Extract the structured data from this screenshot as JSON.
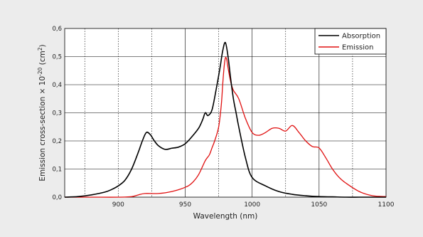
{
  "chart_data": {
    "type": "line",
    "title": "",
    "xlabel": "Wavelength (nm)",
    "ylabel": "Emission cross-section × 10",
    "ylabel_sup1": "-20",
    "ylabel_unit": " (cm",
    "ylabel_sup2": "2",
    "ylabel_end": ")",
    "xlim": [
      860,
      1100
    ],
    "ylim": [
      0,
      0.6
    ],
    "x_ticks": [
      900,
      950,
      1000,
      1050,
      1100
    ],
    "x_tick_labels": [
      "900",
      "950",
      "1000",
      "1050",
      "1100"
    ],
    "y_ticks": [
      0,
      0.1,
      0.2,
      0.3,
      0.4,
      0.5,
      0.6
    ],
    "y_tick_labels": [
      "0,0",
      "0,1",
      "0,2",
      "0,3",
      "0,4",
      "0,5",
      "0,6"
    ],
    "dotted_gridlines_x": [
      875,
      900,
      925,
      975,
      1025,
      1075
    ],
    "solid_gridlines_x": [
      950,
      1000,
      1050
    ],
    "grid": true,
    "legend_position": "top-right",
    "series": [
      {
        "name": "Absorption",
        "color": "#000000",
        "x": [
          860,
          870,
          880,
          890,
          895,
          900,
          905,
          910,
          915,
          918,
          921,
          924,
          927,
          930,
          935,
          940,
          945,
          950,
          955,
          960,
          963,
          965,
          967,
          970,
          973,
          976,
          978,
          980,
          982,
          984,
          986,
          988,
          990,
          995,
          1000,
          1010,
          1020,
          1030,
          1040,
          1050,
          1060,
          1070,
          1080,
          1090,
          1100
        ],
        "y": [
          0.0,
          0.002,
          0.008,
          0.018,
          0.027,
          0.04,
          0.06,
          0.1,
          0.16,
          0.2,
          0.23,
          0.222,
          0.2,
          0.183,
          0.17,
          0.174,
          0.178,
          0.19,
          0.215,
          0.245,
          0.275,
          0.3,
          0.29,
          0.31,
          0.38,
          0.46,
          0.52,
          0.55,
          0.5,
          0.42,
          0.35,
          0.3,
          0.25,
          0.14,
          0.07,
          0.04,
          0.02,
          0.01,
          0.005,
          0.002,
          0.001,
          0.0,
          0.0,
          0.0,
          0.0
        ]
      },
      {
        "name": "Emission",
        "color": "#e01010",
        "x": [
          860,
          880,
          900,
          910,
          915,
          920,
          930,
          940,
          950,
          955,
          960,
          965,
          968,
          970,
          972,
          975,
          977,
          978,
          979,
          980,
          981,
          982,
          984,
          986,
          990,
          995,
          1000,
          1005,
          1010,
          1015,
          1020,
          1025,
          1030,
          1035,
          1040,
          1045,
          1050,
          1055,
          1060,
          1065,
          1070,
          1080,
          1090,
          1100
        ],
        "y": [
          0.0,
          0.0,
          0.0,
          0.002,
          0.008,
          0.013,
          0.013,
          0.02,
          0.035,
          0.05,
          0.08,
          0.13,
          0.15,
          0.175,
          0.2,
          0.25,
          0.33,
          0.4,
          0.46,
          0.495,
          0.49,
          0.46,
          0.41,
          0.38,
          0.35,
          0.28,
          0.23,
          0.22,
          0.23,
          0.245,
          0.245,
          0.235,
          0.255,
          0.23,
          0.2,
          0.18,
          0.175,
          0.14,
          0.1,
          0.07,
          0.05,
          0.02,
          0.005,
          0.002
        ]
      }
    ]
  }
}
